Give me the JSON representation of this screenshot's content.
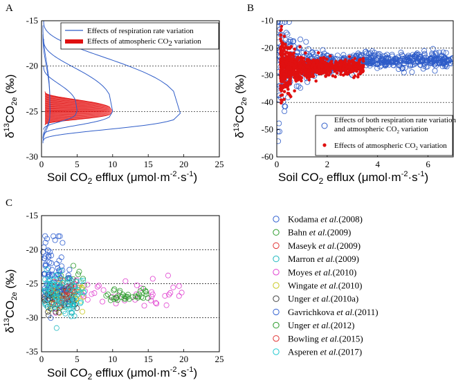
{
  "chart_data": [
    {
      "type": "line",
      "panel_label": "A",
      "xlabel_main": "Soil CO",
      "xlabel_sub": "2",
      "xlabel_rest": " efflux (μmol·m",
      "xlabel_sup": "-2",
      "xlabel_tail": "·s",
      "xlabel_sup2": "-1",
      "xlabel_close": ")",
      "ylabel_delta": "δ",
      "ylabel_sup": "13",
      "ylabel_co": "CO",
      "ylabel_sub": "2e",
      "ylabel_unit": " (‰)",
      "xlim": [
        0,
        25
      ],
      "ylim": [
        -30,
        -15
      ],
      "xticks": [
        0,
        5,
        10,
        15,
        20,
        25
      ],
      "yticks": [
        -30,
        -25,
        -20,
        -15
      ],
      "xtick_labels": [
        "0",
        "5",
        "10",
        "15",
        "20",
        "25"
      ],
      "ytick_labels": [
        "-30",
        "-25",
        "-20",
        "-15"
      ],
      "grid_dashed_y": [
        -25,
        -20
      ],
      "legend": {
        "respiration": "Effects of respiration rate variation",
        "atmospheric_pre": "Effects of atmospheric CO",
        "atmospheric_sub": "2",
        "atmospheric_post": " variation"
      },
      "series": [
        {
          "name": "respiration rate variation",
          "color": "#2e5cc8",
          "curves": [
            {
              "peak_x": 19.5,
              "peak_y": -25.2,
              "top_y": -15,
              "bottom_y": -28.2
            },
            {
              "peak_x": 10.0,
              "peak_y": -25.0,
              "top_y": -17.0,
              "bottom_y": -27.6
            },
            {
              "peak_x": 5.0,
              "peak_y": -24.9,
              "top_y": -20.0,
              "bottom_y": -27.0
            }
          ]
        },
        {
          "name": "atmospheric CO2 variation",
          "color": "#e01010",
          "curves": [
            {
              "peak_x": 10.0,
              "peak_y": -25.0,
              "top_y": -22.8,
              "bottom_y": -26.5
            }
          ]
        }
      ]
    },
    {
      "type": "scatter",
      "panel_label": "B",
      "xlabel_main": "Soil CO",
      "xlabel_sub": "2",
      "xlabel_rest": " efflux (μmol·m",
      "xlabel_sup": "-2",
      "xlabel_tail": "·s",
      "xlabel_sup2": "-1",
      "xlabel_close": ")",
      "ylabel_delta": "δ",
      "ylabel_sup": "13",
      "ylabel_co": "CO",
      "ylabel_sub": "2e",
      "ylabel_unit": " (‰)",
      "xlim": [
        0,
        7
      ],
      "ylim": [
        -60,
        -10
      ],
      "xticks": [
        0,
        2,
        4,
        6
      ],
      "yticks": [
        -60,
        -50,
        -40,
        -30,
        -20,
        -10
      ],
      "xtick_labels": [
        "0",
        "2",
        "4",
        "6"
      ],
      "ytick_labels": [
        "-60",
        "-50",
        "-40",
        "-30",
        "-20",
        "-10"
      ],
      "grid_dashed_y": [
        -20,
        -30,
        -40
      ],
      "legend": {
        "both_line1": "Effects of both respiration rate variation",
        "both_line2_pre": "and atmospheric CO",
        "both_line2_sub": "2",
        "both_line2_post": " variation",
        "atm_pre": "Effects of atmospheric CO",
        "atm_sub": "2",
        "atm_post": " variation"
      },
      "series": [
        {
          "name": "both respiration rate and atmospheric CO2 variation",
          "color": "#2e5cc8",
          "marker": "open-circle",
          "center_y": -26,
          "x_range": [
            0.1,
            7.0
          ]
        },
        {
          "name": "atmospheric CO2 variation",
          "color": "#e01010",
          "marker": "filled-dot",
          "center_y": -27,
          "x_range": [
            0.1,
            3.5
          ]
        }
      ]
    },
    {
      "type": "scatter",
      "panel_label": "C",
      "xlabel_main": "Soil CO",
      "xlabel_sub": "2",
      "xlabel_rest": " efflux (μmol·m",
      "xlabel_sup": "-2",
      "xlabel_tail": "·s",
      "xlabel_sup2": "-1",
      "xlabel_close": ")",
      "ylabel_delta": "δ",
      "ylabel_sup": "13",
      "ylabel_co": "CO",
      "ylabel_sub": "2e",
      "ylabel_unit": " (‰)",
      "xlim": [
        0,
        25
      ],
      "ylim": [
        -35,
        -15
      ],
      "xticks": [
        0,
        5,
        10,
        15,
        20,
        25
      ],
      "yticks": [
        -35,
        -30,
        -25,
        -20,
        -15
      ],
      "xtick_labels": [
        "0",
        "5",
        "10",
        "15",
        "20",
        "25"
      ],
      "ytick_labels": [
        "-35",
        "-30",
        "-25",
        "-20",
        "-15"
      ],
      "grid_dashed_y": [
        -20,
        -25,
        -30
      ],
      "series": [
        {
          "pre": "Kodama ",
          "italic": "et al.",
          "post": "(2008)",
          "color": "#2f5fd0",
          "x_range": [
            0.2,
            3.0
          ],
          "y_center": -22.5,
          "y_spread": 4.0
        },
        {
          "pre": "Bahn ",
          "italic": "et al.",
          "post": "(2009)",
          "color": "#2a9a2a",
          "x_range": [
            1.0,
            6.0
          ],
          "y_center": -25.5,
          "y_spread": 2.0
        },
        {
          "pre": "Maseyk ",
          "italic": "et al.",
          "post": "(2009)",
          "color": "#e03030",
          "x_range": [
            2.5,
            5.0
          ],
          "y_center": -26.0,
          "y_spread": 1.2
        },
        {
          "pre": "Marron ",
          "italic": "et al.",
          "post": "(2009)",
          "color": "#20b8c0",
          "x_range": [
            0.5,
            5.0
          ],
          "y_center": -27.0,
          "y_spread": 2.5
        },
        {
          "pre": "Moyes ",
          "italic": "et al.",
          "post": "(2010)",
          "color": "#e040d0",
          "x_range": [
            1.0,
            20.0
          ],
          "y_center": -26.5,
          "y_spread": 2.0
        },
        {
          "pre": "Wingate ",
          "italic": "et al.",
          "post": "(2010)",
          "color": "#c8c820",
          "x_range": [
            1.0,
            6.0
          ],
          "y_center": -27.0,
          "y_spread": 1.5
        },
        {
          "pre": "Unger ",
          "italic": "et al.",
          "post": "(2010a)",
          "color": "#404040",
          "x_range": [
            0.3,
            5.0
          ],
          "y_center": -27.0,
          "y_spread": 2.0
        },
        {
          "pre": "Gavrichkova ",
          "italic": "et al.",
          "post": "(2011)",
          "color": "#2f5fd0",
          "x_range": [
            0.3,
            4.0
          ],
          "y_center": -25.0,
          "y_spread": 2.5
        },
        {
          "pre": "Unger ",
          "italic": "et al.",
          "post": "(2012)",
          "color": "#2a9a2a",
          "x_range": [
            9.0,
            15.0
          ],
          "y_center": -26.8,
          "y_spread": 0.8
        },
        {
          "pre": "Bowling ",
          "italic": "et al.",
          "post": "(2015)",
          "color": "#e03030",
          "x_range": [
            1.0,
            5.0
          ],
          "y_center": -26.5,
          "y_spread": 1.5
        },
        {
          "pre": "Asperen ",
          "italic": "et al.",
          "post": "(2017)",
          "color": "#20c8d0",
          "x_range": [
            0.3,
            6.0
          ],
          "y_center": -26.0,
          "y_spread": 2.5
        }
      ]
    }
  ]
}
